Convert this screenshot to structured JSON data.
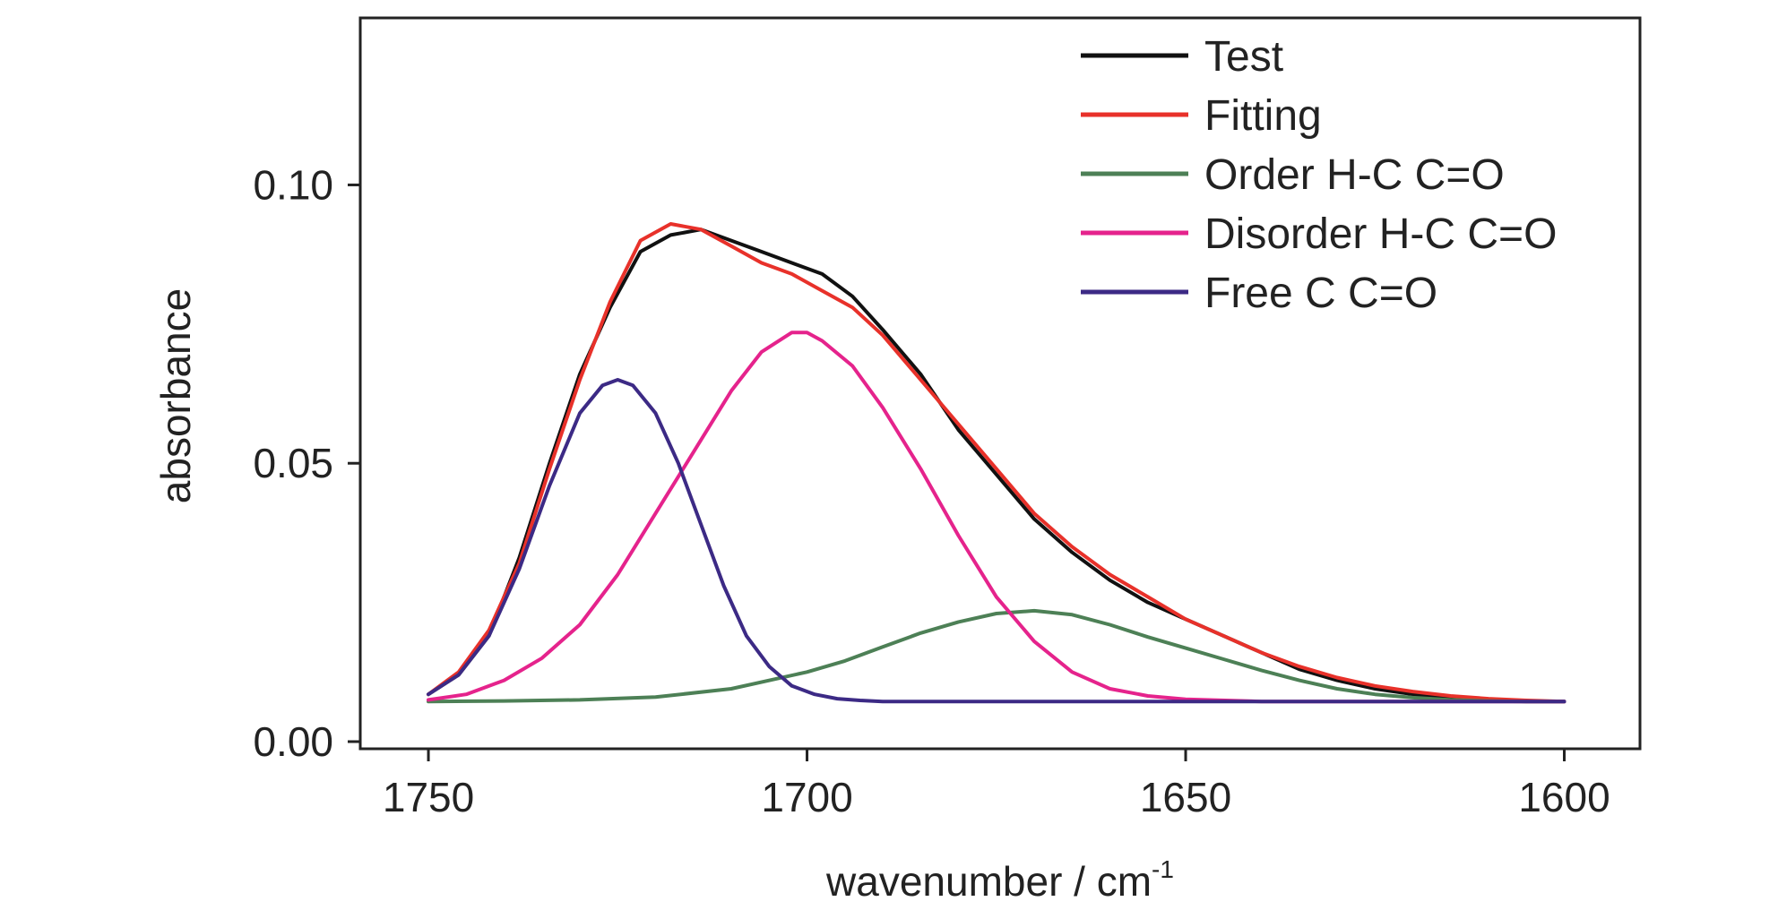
{
  "chart_data": {
    "type": "line",
    "xlabel": "wavenumber / cm",
    "xlabel_superscript": "-1",
    "ylabel": "absorbance",
    "xlim": [
      1759,
      1590
    ],
    "ylim": [
      0,
      0.13
    ],
    "x_reversed": true,
    "xticks": [
      1750,
      1700,
      1650,
      1600
    ],
    "xtick_labels": [
      "1750",
      "1700",
      "1650",
      "1600"
    ],
    "yticks": [
      0.0,
      0.05,
      0.1
    ],
    "ytick_labels": [
      "0.00",
      "0.05",
      "0.10"
    ],
    "grid": false,
    "legend_position": "top-right",
    "series": [
      {
        "name": "Test",
        "color": "#111111",
        "x": [
          1750,
          1746,
          1742,
          1738,
          1734,
          1730,
          1726,
          1722,
          1718,
          1714,
          1710,
          1706,
          1702,
          1698,
          1694,
          1690,
          1685,
          1680,
          1675,
          1670,
          1665,
          1660,
          1655,
          1650,
          1645,
          1640,
          1635,
          1630,
          1625,
          1620,
          1615,
          1610,
          1605,
          1600
        ],
        "y": [
          0.0085,
          0.012,
          0.019,
          0.033,
          0.05,
          0.066,
          0.078,
          0.088,
          0.091,
          0.092,
          0.09,
          0.088,
          0.086,
          0.084,
          0.08,
          0.074,
          0.066,
          0.056,
          0.048,
          0.04,
          0.034,
          0.029,
          0.025,
          0.022,
          0.019,
          0.016,
          0.013,
          0.011,
          0.0095,
          0.0085,
          0.008,
          0.0075,
          0.0072,
          0.0072
        ]
      },
      {
        "name": "Fitting",
        "color": "#e8312a",
        "x": [
          1750,
          1746,
          1742,
          1738,
          1734,
          1730,
          1726,
          1722,
          1718,
          1714,
          1710,
          1706,
          1702,
          1698,
          1694,
          1690,
          1685,
          1680,
          1675,
          1670,
          1665,
          1660,
          1655,
          1650,
          1645,
          1640,
          1635,
          1630,
          1625,
          1620,
          1615,
          1610,
          1605,
          1600
        ],
        "y": [
          0.0085,
          0.0125,
          0.02,
          0.032,
          0.049,
          0.065,
          0.079,
          0.09,
          0.093,
          0.092,
          0.089,
          0.086,
          0.084,
          0.081,
          0.078,
          0.073,
          0.065,
          0.057,
          0.049,
          0.041,
          0.035,
          0.03,
          0.026,
          0.022,
          0.019,
          0.016,
          0.0135,
          0.0115,
          0.01,
          0.009,
          0.0082,
          0.0077,
          0.0074,
          0.0072
        ]
      },
      {
        "name": "Order H-C C=O",
        "color": "#4d8056",
        "x": [
          1750,
          1740,
          1730,
          1720,
          1710,
          1700,
          1695,
          1690,
          1685,
          1680,
          1675,
          1670,
          1665,
          1660,
          1655,
          1650,
          1645,
          1640,
          1635,
          1630,
          1625,
          1620,
          1615,
          1610,
          1605,
          1600
        ],
        "y": [
          0.0072,
          0.0073,
          0.0075,
          0.008,
          0.0095,
          0.0125,
          0.0145,
          0.017,
          0.0195,
          0.0215,
          0.023,
          0.0235,
          0.0228,
          0.021,
          0.0188,
          0.0168,
          0.0148,
          0.0128,
          0.011,
          0.0095,
          0.0085,
          0.0079,
          0.0075,
          0.0073,
          0.0072,
          0.0072
        ]
      },
      {
        "name": "Disorder H-C C=O",
        "color": "#e5238c",
        "x": [
          1750,
          1745,
          1740,
          1735,
          1730,
          1725,
          1720,
          1715,
          1710,
          1706,
          1702,
          1700,
          1698,
          1694,
          1690,
          1685,
          1680,
          1675,
          1670,
          1665,
          1660,
          1655,
          1650,
          1640,
          1630,
          1620,
          1610,
          1600
        ],
        "y": [
          0.0075,
          0.0085,
          0.011,
          0.015,
          0.021,
          0.03,
          0.041,
          0.052,
          0.063,
          0.07,
          0.0735,
          0.0735,
          0.072,
          0.0675,
          0.06,
          0.049,
          0.037,
          0.026,
          0.018,
          0.0125,
          0.0095,
          0.0082,
          0.0076,
          0.0072,
          0.0072,
          0.0072,
          0.0072,
          0.0072
        ]
      },
      {
        "name": "Free C C=O",
        "color": "#3c2a85",
        "x": [
          1750,
          1746,
          1742,
          1738,
          1734,
          1730,
          1727,
          1725,
          1723,
          1720,
          1717,
          1714,
          1711,
          1708,
          1705,
          1702,
          1699,
          1696,
          1693,
          1690,
          1685,
          1680,
          1670,
          1660,
          1650,
          1640,
          1630,
          1620,
          1610,
          1600
        ],
        "y": [
          0.0085,
          0.012,
          0.019,
          0.031,
          0.046,
          0.059,
          0.064,
          0.065,
          0.064,
          0.059,
          0.05,
          0.039,
          0.028,
          0.019,
          0.0135,
          0.01,
          0.0085,
          0.0077,
          0.0074,
          0.0072,
          0.0072,
          0.0072,
          0.0072,
          0.0072,
          0.0072,
          0.0072,
          0.0072,
          0.0072,
          0.0072,
          0.0072
        ]
      }
    ]
  }
}
